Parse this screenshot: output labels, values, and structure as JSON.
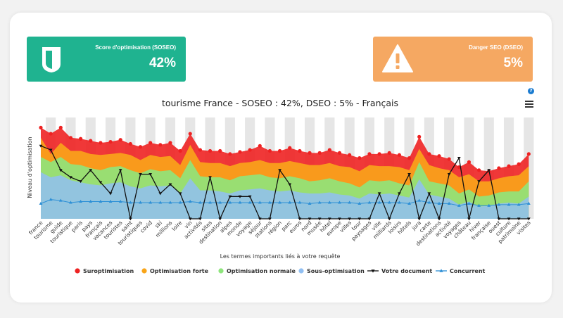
{
  "colors": {
    "soseo": "#1fb390",
    "dseo": "#f5a862",
    "over": "#ee2222",
    "strong": "#f9a519",
    "normal": "#8ee57c",
    "under": "#91bff2",
    "doc": "#111111",
    "competitor": "#2c8fd6",
    "band": "#e6e6e6",
    "help": "#1a7bd0"
  },
  "soseo_card": {
    "title": "Score d'optimisation (SOSEO)",
    "value": "42%",
    "icon": "shield-icon"
  },
  "dseo_card": {
    "title": "Danger SEO (DSEO)",
    "value": "5%",
    "icon": "warning-icon"
  },
  "help": {
    "label": "?"
  },
  "chart_data": {
    "type": "area",
    "title": "tourisme France - SOSEO : 42%, DSEO : 5% - Français",
    "xlabel": "Les termes importants liés à votre requête",
    "ylabel": "Niveau d'optimisation",
    "grid": false,
    "legend_position": "bottom",
    "categories": [
      "france",
      "tourisme",
      "guide",
      "touristique",
      "paris",
      "pays",
      "français",
      "vacances",
      "touristes",
      "saint",
      "touristiques",
      "covid",
      "ski",
      "millions",
      "loire",
      "vin",
      "activités",
      "sites",
      "destination",
      "alpes",
      "monde",
      "voyage",
      "séjour",
      "stations",
      "région",
      "parc",
      "euros",
      "nord",
      "musée",
      "hôtel",
      "europe",
      "villes",
      "tour",
      "paysages",
      "ville",
      "milliards",
      "loisirs",
      "hôtels",
      "jura",
      "carte",
      "destinations",
      "activité",
      "voyages",
      "château",
      "hiver",
      "française",
      "ouest",
      "culture",
      "patrimoine",
      "visites"
    ],
    "series": [
      {
        "name": "Suroptimisation",
        "values": [
          90,
          84,
          90,
          80,
          79,
          77,
          75,
          76,
          78,
          74,
          71,
          75,
          73,
          75,
          67,
          84,
          68,
          67,
          67,
          64,
          66,
          68,
          72,
          67,
          67,
          70,
          67,
          65,
          65,
          68,
          65,
          63,
          60,
          64,
          64,
          65,
          63,
          60,
          81,
          64,
          62,
          59,
          51,
          56,
          48,
          47,
          50,
          52,
          54,
          64
        ]
      },
      {
        "name": "Optimisation forte",
        "values": [
          80,
          64,
          75,
          67,
          67,
          64,
          63,
          64,
          65,
          63,
          58,
          63,
          61,
          62,
          53,
          73,
          56,
          55,
          55,
          52,
          55,
          56,
          58,
          55,
          55,
          57,
          55,
          53,
          53,
          55,
          52,
          51,
          47,
          53,
          52,
          52,
          51,
          48,
          69,
          53,
          50,
          48,
          41,
          44,
          37,
          37,
          40,
          42,
          43,
          52
        ]
      },
      {
        "name": "Optimisation normale",
        "values": [
          61,
          56,
          61,
          54,
          53,
          50,
          48,
          51,
          52,
          48,
          45,
          49,
          47,
          48,
          40,
          58,
          42,
          41,
          41,
          38,
          42,
          43,
          44,
          41,
          40,
          42,
          40,
          37,
          38,
          40,
          37,
          35,
          31,
          38,
          37,
          38,
          35,
          33,
          56,
          37,
          35,
          33,
          25,
          29,
          22,
          23,
          26,
          27,
          27,
          37
        ]
      },
      {
        "name": "Sous-optimisation",
        "values": [
          46,
          41,
          43,
          38,
          36,
          34,
          33,
          35,
          36,
          32,
          30,
          33,
          32,
          33,
          25,
          40,
          28,
          28,
          27,
          25,
          28,
          29,
          30,
          28,
          27,
          28,
          26,
          25,
          25,
          26,
          24,
          23,
          20,
          25,
          24,
          25,
          23,
          21,
          39,
          24,
          22,
          20,
          14,
          17,
          12,
          13,
          15,
          16,
          15,
          22
        ]
      },
      {
        "name": "Votre document",
        "values": [
          72,
          68,
          48,
          41,
          37,
          48,
          36,
          25,
          48,
          0,
          44,
          44,
          25,
          34,
          25,
          0,
          0,
          41,
          0,
          22,
          22,
          22,
          0,
          0,
          48,
          34,
          0,
          0,
          0,
          0,
          0,
          0,
          0,
          0,
          25,
          0,
          25,
          44,
          0,
          25,
          0,
          44,
          60,
          0,
          37,
          48,
          0,
          0,
          0,
          0
        ]
      },
      {
        "name": "Concurrent",
        "values": [
          15,
          19,
          18,
          16,
          17,
          17,
          17,
          17,
          17,
          16,
          16,
          16,
          16,
          16,
          16,
          17,
          16,
          16,
          16,
          16,
          16,
          16,
          16,
          16,
          16,
          16,
          16,
          15,
          16,
          16,
          16,
          16,
          15,
          16,
          16,
          16,
          16,
          15,
          18,
          16,
          15,
          15,
          13,
          15,
          13,
          13,
          14,
          14,
          14,
          15
        ]
      }
    ]
  }
}
